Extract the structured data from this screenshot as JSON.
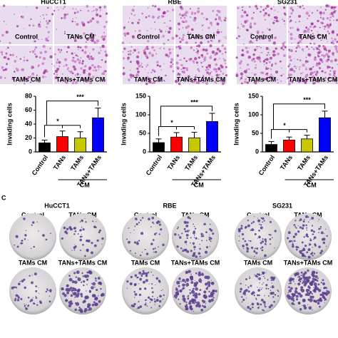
{
  "panel_a": {
    "cell_lines": [
      "HuCCT1",
      "RBE",
      "SG231"
    ],
    "labels": [
      "Control",
      "TANs CM",
      "TAMs CM",
      "TANs+TAMs CM"
    ]
  },
  "chart_data": [
    {
      "type": "bar",
      "ylabel": "Invading cells",
      "group_label": "CM",
      "categories": [
        "Control",
        "TANs",
        "TAMs",
        "TANs+TAMs"
      ],
      "values": [
        13,
        22,
        20,
        49
      ],
      "errors": [
        4,
        8,
        9,
        14
      ],
      "colors": [
        "#000000",
        "#ff0000",
        "#c8c800",
        "#0000ff"
      ],
      "ylim": [
        0,
        80
      ],
      "yticks": [
        0,
        20,
        40,
        60,
        80
      ],
      "annotations": [
        "*",
        "***"
      ]
    },
    {
      "type": "bar",
      "ylabel": "Invading cells",
      "group_label": "CM",
      "categories": [
        "Control",
        "TANs",
        "TAMs",
        "TANs+TAMs"
      ],
      "values": [
        25,
        40,
        38,
        82
      ],
      "errors": [
        10,
        12,
        15,
        22
      ],
      "colors": [
        "#000000",
        "#ff0000",
        "#c8c800",
        "#0000ff"
      ],
      "ylim": [
        0,
        150
      ],
      "yticks": [
        0,
        50,
        100,
        150
      ],
      "annotations": [
        "*",
        "***"
      ]
    },
    {
      "type": "bar",
      "ylabel": "Invading cells",
      "group_label": "CM",
      "categories": [
        "Control",
        "TANs",
        "TAMs",
        "TANs+TAMs"
      ],
      "values": [
        20,
        32,
        35,
        92
      ],
      "errors": [
        8,
        8,
        10,
        18
      ],
      "colors": [
        "#000000",
        "#ff0000",
        "#c8c800",
        "#0000ff"
      ],
      "ylim": [
        0,
        150
      ],
      "yticks": [
        0,
        50,
        100,
        150
      ],
      "annotations": [
        "*",
        "***"
      ]
    }
  ],
  "panel_c": {
    "letter": "C",
    "cell_lines": [
      "HuCCT1",
      "RBE",
      "SG231"
    ],
    "labels": [
      "Control",
      "TANs CM",
      "TAMs CM",
      "TANs+TAMs CM"
    ]
  }
}
